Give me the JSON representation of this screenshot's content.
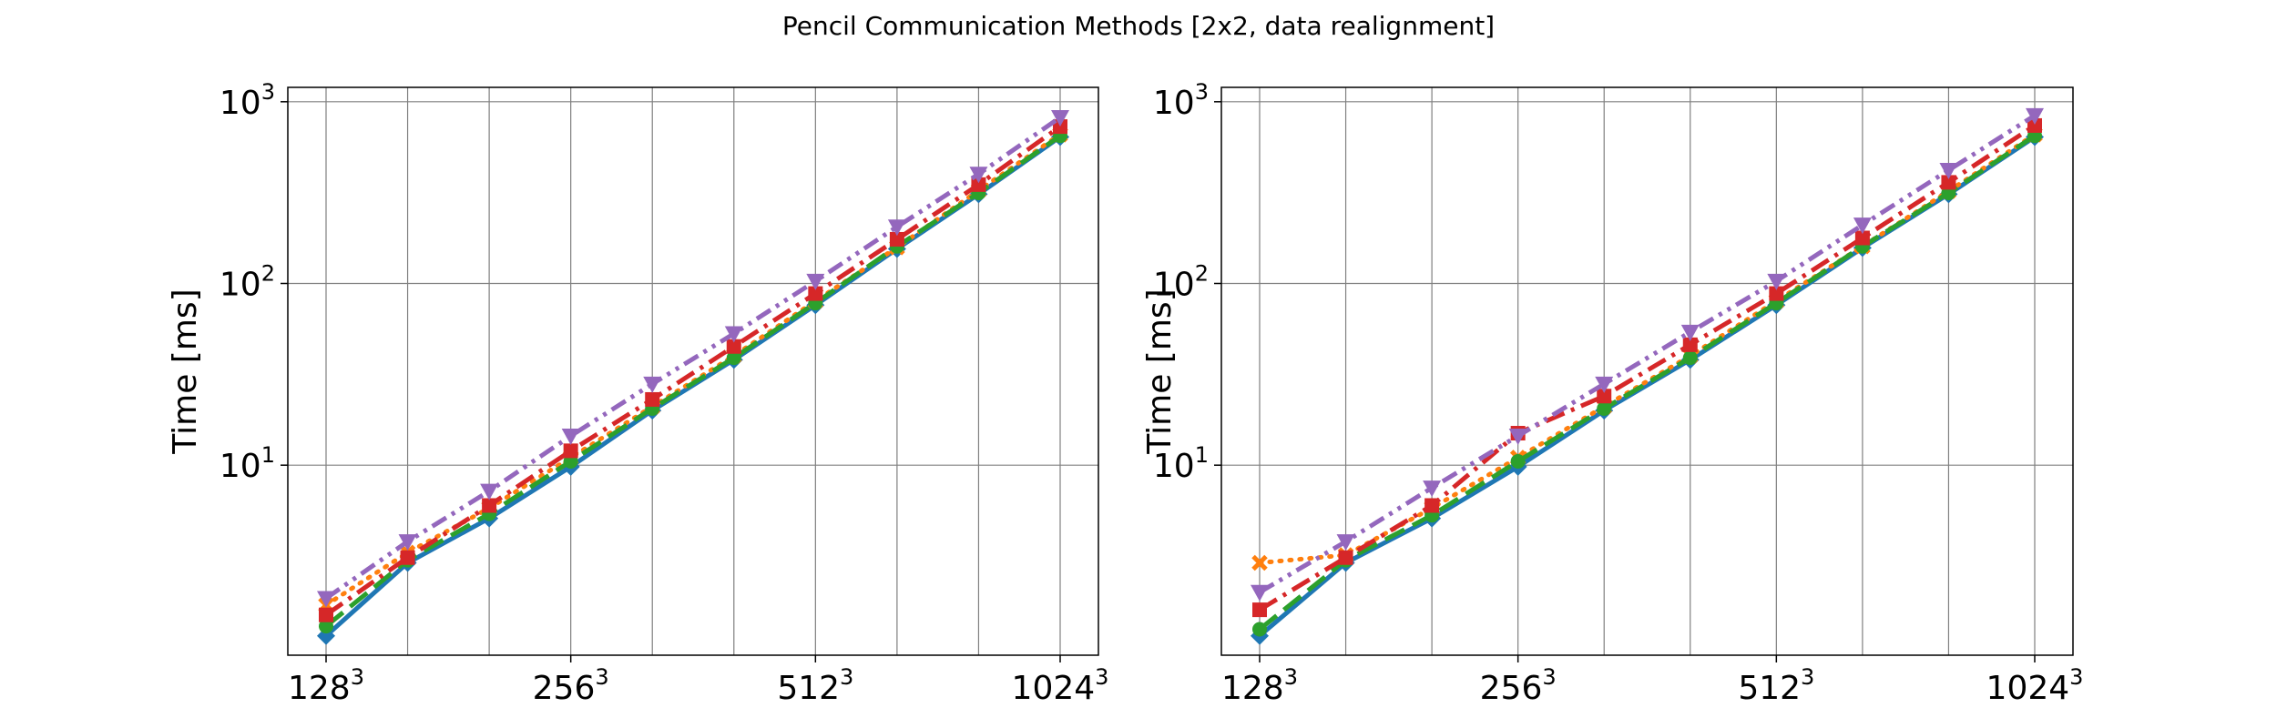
{
  "figure": {
    "title": "Pencil Communication Methods [2x2, data realignment]"
  },
  "colors": {
    "series1": "#1f77b4",
    "series2": "#ff7f0e",
    "series3": "#2ca02c",
    "series4": "#d62728",
    "series5": "#9467bd",
    "grid": "#808080"
  },
  "chart_data": [
    {
      "type": "line",
      "ylabel": "Time [ms]",
      "yscale": "log",
      "ylim": [
        0.9,
        1200
      ],
      "grid": true,
      "x": [
        128,
        160,
        192,
        256,
        320,
        384,
        512,
        640,
        768,
        1024
      ],
      "x_tick_positions": [
        0,
        3,
        6,
        9
      ],
      "x_ticks": [
        {
          "base": "128",
          "exp": "3"
        },
        {
          "base": "256",
          "exp": "3"
        },
        {
          "base": "512",
          "exp": "3"
        },
        {
          "base": "1024",
          "exp": "3"
        }
      ],
      "y_ticks": [
        {
          "value": 10,
          "base": "10",
          "exp": "1"
        },
        {
          "value": 100,
          "base": "10",
          "exp": "2"
        },
        {
          "value": 1000,
          "base": "10",
          "exp": "3"
        }
      ],
      "series": [
        {
          "style": "solid",
          "marker": "diamond",
          "color": "#1f77b4",
          "values": [
            1.15,
            2.9,
            5.1,
            9.8,
            20,
            38,
            76,
            155,
            310,
            640
          ]
        },
        {
          "style": "dotted",
          "marker": "x",
          "color": "#ff7f0e",
          "values": [
            1.7,
            3.3,
            5.8,
            11,
            21,
            40,
            80,
            158,
            325,
            660
          ]
        },
        {
          "style": "dashed",
          "marker": "circle",
          "color": "#2ca02c",
          "values": [
            1.3,
            3.0,
            5.4,
            10.5,
            20.5,
            39,
            78,
            160,
            315,
            650
          ]
        },
        {
          "style": "dashdot",
          "marker": "square",
          "color": "#d62728",
          "values": [
            1.5,
            3.1,
            6.0,
            12,
            23,
            45,
            88,
            175,
            350,
            730
          ]
        },
        {
          "style": "dashdotdot",
          "marker": "triangle-down",
          "color": "#9467bd",
          "values": [
            1.85,
            3.8,
            7.2,
            14.5,
            28,
            53,
            103,
            205,
            400,
            820
          ]
        }
      ]
    },
    {
      "type": "line",
      "ylabel": "Time [ms]",
      "yscale": "log",
      "ylim": [
        0.9,
        1200
      ],
      "grid": true,
      "x": [
        128,
        160,
        192,
        256,
        320,
        384,
        512,
        640,
        768,
        1024
      ],
      "x_tick_positions": [
        0,
        3,
        6,
        9
      ],
      "x_ticks": [
        {
          "base": "128",
          "exp": "3"
        },
        {
          "base": "256",
          "exp": "3"
        },
        {
          "base": "512",
          "exp": "3"
        },
        {
          "base": "1024",
          "exp": "3"
        }
      ],
      "y_ticks": [
        {
          "value": 10,
          "base": "10",
          "exp": "1"
        },
        {
          "value": 100,
          "base": "10",
          "exp": "2"
        },
        {
          "value": 1000,
          "base": "10",
          "exp": "3"
        }
      ],
      "series": [
        {
          "style": "solid",
          "marker": "diamond",
          "color": "#1f77b4",
          "values": [
            1.15,
            2.9,
            5.1,
            9.8,
            20,
            38,
            76,
            157,
            310,
            640
          ]
        },
        {
          "style": "dotted",
          "marker": "x",
          "color": "#ff7f0e",
          "values": [
            2.9,
            3.2,
            5.8,
            11,
            21,
            40,
            80,
            160,
            322,
            660
          ]
        },
        {
          "style": "dashed",
          "marker": "circle",
          "color": "#2ca02c",
          "values": [
            1.25,
            3.0,
            5.3,
            10.5,
            20.5,
            39,
            78,
            160,
            315,
            650
          ]
        },
        {
          "style": "dashdot",
          "marker": "square",
          "color": "#d62728",
          "values": [
            1.6,
            3.1,
            6.0,
            15,
            24,
            46,
            88,
            178,
            360,
            740
          ]
        },
        {
          "style": "dashdotdot",
          "marker": "triangle-down",
          "color": "#9467bd",
          "values": [
            2.0,
            3.8,
            7.5,
            14.5,
            28,
            54,
            103,
            210,
            420,
            840
          ]
        }
      ]
    }
  ]
}
